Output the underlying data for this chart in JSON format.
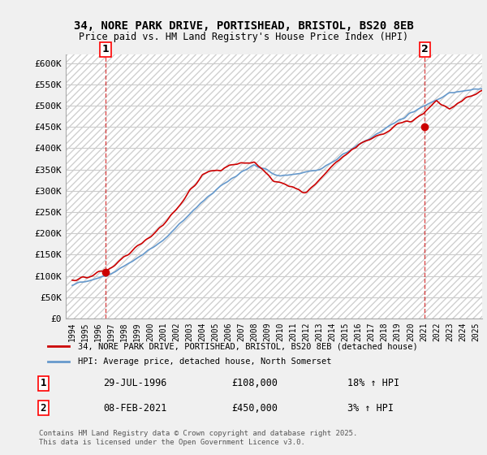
{
  "title_line1": "34, NORE PARK DRIVE, PORTISHEAD, BRISTOL, BS20 8EB",
  "title_line2": "Price paid vs. HM Land Registry's House Price Index (HPI)",
  "ylabel_ticks": [
    "£0",
    "£50K",
    "£100K",
    "£150K",
    "£200K",
    "£250K",
    "£300K",
    "£350K",
    "£400K",
    "£450K",
    "£500K",
    "£550K",
    "£600K"
  ],
  "ytick_values": [
    0,
    50000,
    100000,
    150000,
    200000,
    250000,
    300000,
    350000,
    400000,
    450000,
    500000,
    550000,
    600000
  ],
  "xlim": [
    1993.5,
    2025.5
  ],
  "ylim": [
    0,
    620000
  ],
  "red_color": "#cc0000",
  "blue_color": "#6699cc",
  "marker_color": "#cc0000",
  "sale1_x": 1996.57,
  "sale1_y": 108000,
  "sale1_label": "1",
  "sale1_date": "29-JUL-1996",
  "sale1_price": "£108,000",
  "sale1_hpi": "18% ↑ HPI",
  "sale2_x": 2021.1,
  "sale2_y": 450000,
  "sale2_label": "2",
  "sale2_date": "08-FEB-2021",
  "sale2_price": "£450,000",
  "sale2_hpi": "3% ↑ HPI",
  "legend_label_red": "34, NORE PARK DRIVE, PORTISHEAD, BRISTOL, BS20 8EB (detached house)",
  "legend_label_blue": "HPI: Average price, detached house, North Somerset",
  "footnote": "Contains HM Land Registry data © Crown copyright and database right 2025.\nThis data is licensed under the Open Government Licence v3.0.",
  "bg_color": "#f0f0f0",
  "plot_bg": "#ffffff",
  "hatch_color": "#d0d0d0"
}
